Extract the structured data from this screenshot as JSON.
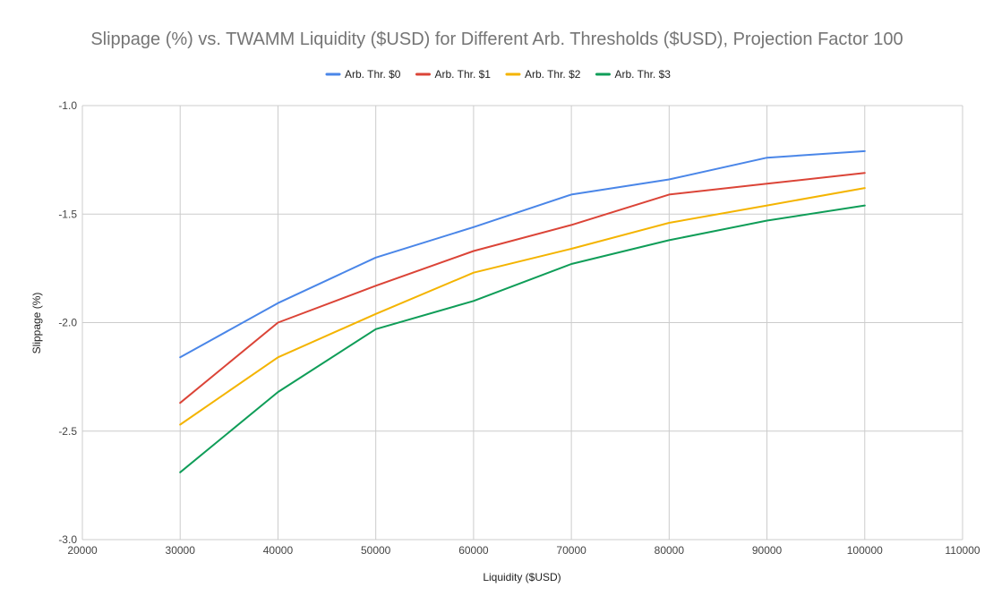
{
  "chart_data": {
    "type": "line",
    "title": "Slippage (%) vs. TWAMM Liquidity ($USD) for Different Arb. Thresholds ($USD), Projection Factor 100",
    "xlabel": "Liquidity ($USD)",
    "ylabel": "Slippage (%)",
    "xlim": [
      20000,
      110000
    ],
    "ylim": [
      -3.0,
      -1.0
    ],
    "x_ticks": [
      20000,
      30000,
      40000,
      50000,
      60000,
      70000,
      80000,
      90000,
      100000,
      110000
    ],
    "y_ticks": [
      "-1.0",
      "-1.5",
      "-2.0",
      "-2.5",
      "-3.0"
    ],
    "grid": true,
    "legend_position": "top",
    "x": [
      30000,
      40000,
      50000,
      60000,
      70000,
      80000,
      90000,
      100000
    ],
    "series": [
      {
        "name": "Arb. Thr. $0",
        "color": "#4a86e8",
        "values": [
          -2.16,
          -1.91,
          -1.7,
          -1.56,
          -1.41,
          -1.34,
          -1.24,
          -1.21
        ]
      },
      {
        "name": "Arb. Thr. $1",
        "color": "#db4437",
        "values": [
          -2.37,
          -2.0,
          -1.83,
          -1.67,
          -1.55,
          -1.41,
          -1.36,
          -1.31
        ]
      },
      {
        "name": "Arb. Thr. $2",
        "color": "#f4b400",
        "values": [
          -2.47,
          -2.16,
          -1.96,
          -1.77,
          -1.66,
          -1.54,
          -1.46,
          -1.38
        ]
      },
      {
        "name": "Arb. Thr. $3",
        "color": "#0f9d58",
        "values": [
          -2.69,
          -2.32,
          -2.03,
          -1.9,
          -1.73,
          -1.62,
          -1.53,
          -1.46
        ]
      }
    ]
  }
}
